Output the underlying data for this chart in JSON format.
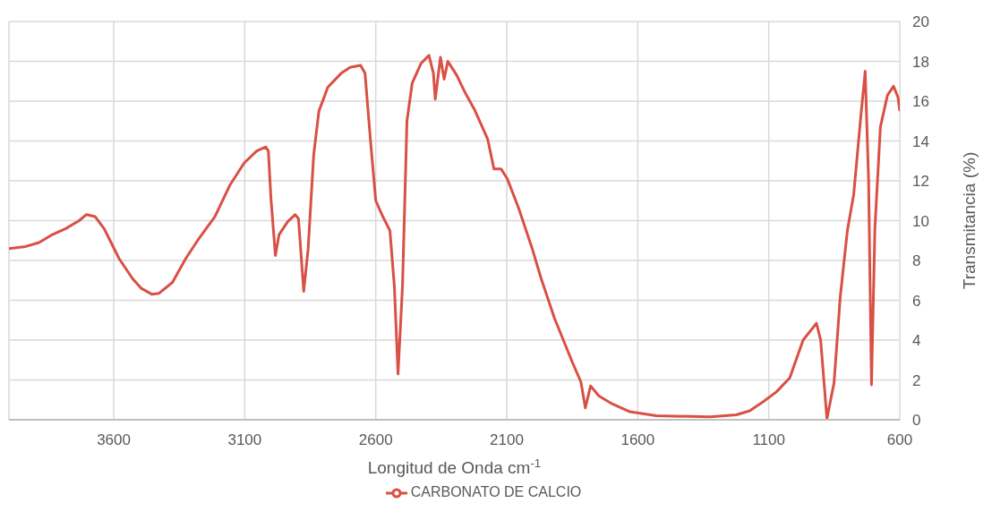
{
  "chart_data": {
    "type": "line",
    "xlabel": "Longitud de Onda cm$^{-1}$",
    "ylabel": "Transmitancia (%)",
    "xlim": [
      4000,
      600
    ],
    "xticks": [
      3600,
      3100,
      2600,
      2100,
      1600,
      1100,
      600
    ],
    "ylim": [
      0,
      20
    ],
    "yticks": [
      0,
      2,
      4,
      6,
      8,
      10,
      12,
      14,
      16,
      18,
      20
    ],
    "grid": true,
    "legend": "bottom",
    "marker": "none",
    "line_style": "solid",
    "x": [
      4000,
      3936,
      3885,
      3834,
      3783,
      3732,
      3705,
      3671,
      3637,
      3614,
      3580,
      3529,
      3495,
      3454,
      3427,
      3376,
      3325,
      3275,
      3214,
      3156,
      3102,
      3054,
      3020,
      3010,
      3000,
      2983,
      2969,
      2936,
      2908,
      2895,
      2875,
      2858,
      2837,
      2817,
      2783,
      2732,
      2698,
      2658,
      2641,
      2620,
      2600,
      2573,
      2546,
      2529,
      2515,
      2498,
      2481,
      2461,
      2427,
      2397,
      2380,
      2373,
      2353,
      2339,
      2325,
      2291,
      2258,
      2224,
      2173,
      2149,
      2122,
      2098,
      2054,
      2003,
      1969,
      1918,
      1850,
      1817,
      1800,
      1780,
      1749,
      1698,
      1630,
      1529,
      1325,
      1224,
      1173,
      1122,
      1071,
      1020,
      969,
      918,
      902,
      878,
      851,
      827,
      800,
      776,
      749,
      732,
      719,
      708,
      695,
      674,
      647,
      624,
      607,
      600
    ],
    "series": [
      {
        "name": "CARBONATO DE CALCIO",
        "color": "#d95045",
        "values": [
          8.6,
          8.7,
          8.9,
          9.3,
          9.6,
          10.0,
          10.3,
          10.2,
          9.6,
          9.0,
          8.1,
          7.1,
          6.6,
          6.3,
          6.35,
          6.9,
          8.1,
          9.1,
          10.2,
          11.8,
          12.9,
          13.5,
          13.7,
          13.5,
          11.1,
          8.25,
          9.3,
          9.95,
          10.3,
          10.1,
          6.45,
          8.6,
          13.3,
          15.5,
          16.7,
          17.4,
          17.7,
          17.8,
          17.4,
          14.0,
          11.0,
          10.2,
          9.5,
          6.7,
          2.3,
          6.7,
          15.0,
          16.9,
          17.9,
          18.3,
          17.4,
          16.1,
          18.2,
          17.1,
          18.0,
          17.3,
          16.4,
          15.6,
          14.1,
          12.6,
          12.6,
          12.1,
          10.6,
          8.6,
          7.1,
          5.1,
          2.9,
          1.9,
          0.6,
          1.7,
          1.2,
          0.8,
          0.4,
          0.2,
          0.15,
          0.25,
          0.45,
          0.9,
          1.4,
          2.1,
          4.0,
          4.85,
          4.0,
          0.05,
          1.85,
          6.2,
          9.5,
          11.3,
          15.2,
          17.5,
          12.0,
          1.75,
          9.6,
          14.7,
          16.3,
          16.75,
          16.2,
          15.5
        ]
      }
    ]
  }
}
